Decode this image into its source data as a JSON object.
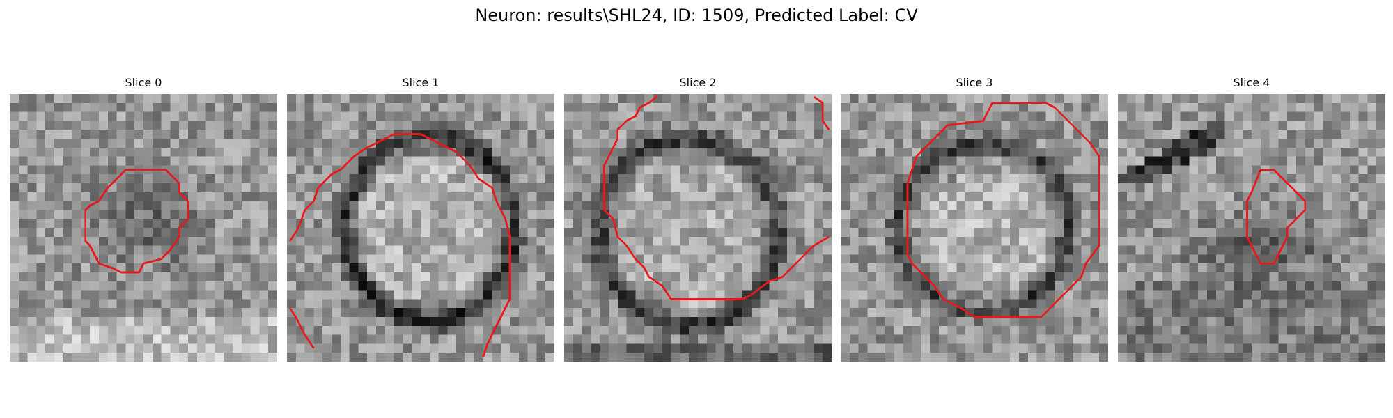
{
  "figure": {
    "title": "Neuron: results\\SHL24, ID: 1509, Predicted Label: CV"
  },
  "slices": [
    {
      "label": "Slice 0"
    },
    {
      "label": "Slice 1"
    },
    {
      "label": "Slice 2"
    },
    {
      "label": "Slice 3"
    },
    {
      "label": "Slice 4"
    }
  ],
  "style": {
    "contour_color": "#e8191b"
  }
}
